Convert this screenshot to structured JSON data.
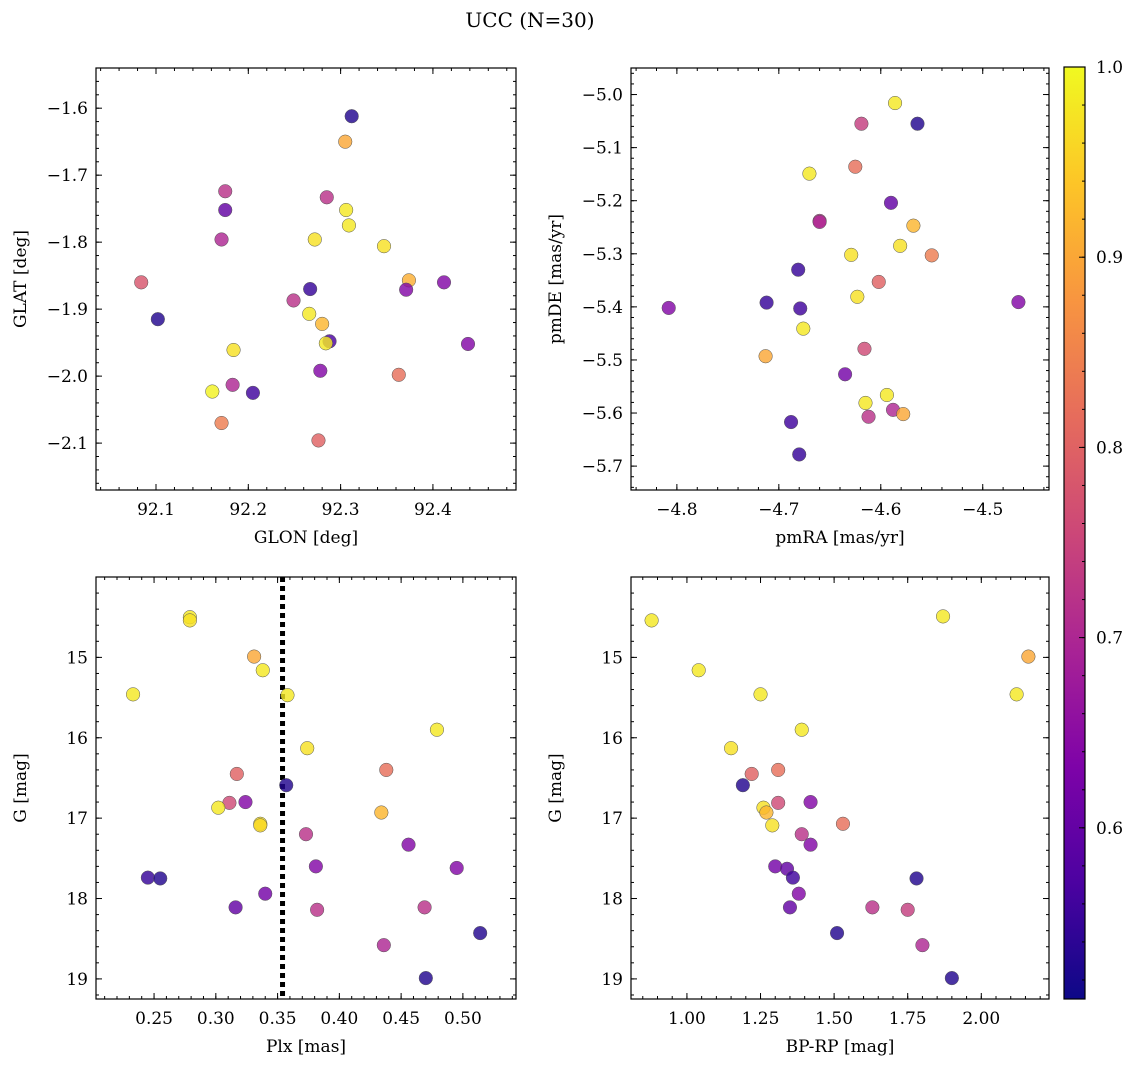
{
  "figure_title": "UCC (N=30)",
  "colorbar": {
    "colormap": "plasma",
    "range": [
      0.51,
      1.0
    ],
    "ticks": [
      0.6,
      0.7,
      0.8,
      0.9,
      1.0
    ],
    "tick_labels": [
      "0.6",
      "0.7",
      "0.8",
      "0.9",
      "1.0"
    ]
  },
  "chart_data": [
    {
      "type": "scatter",
      "xlabel": "GLON [deg]",
      "ylabel": "GLAT [deg]",
      "xlim": [
        92.035,
        92.49
      ],
      "ylim": [
        -2.17,
        -1.54
      ],
      "xticks": [
        92.1,
        92.2,
        92.3,
        92.4
      ],
      "xtick_labels": [
        "92.1",
        "92.2",
        "92.3",
        "92.4"
      ],
      "yticks": [
        -1.6,
        -1.7,
        -1.8,
        -1.9,
        -2.0,
        -2.1
      ],
      "ytick_labels": [
        "−1.6",
        "−1.7",
        "−1.8",
        "−1.9",
        "−2.0",
        "−2.1"
      ],
      "points": [
        {
          "x": 92.312,
          "y": -1.612,
          "c": 0.53
        },
        {
          "x": 92.305,
          "y": -1.65,
          "c": 0.9
        },
        {
          "x": 92.175,
          "y": -1.724,
          "c": 0.72
        },
        {
          "x": 92.285,
          "y": -1.733,
          "c": 0.72
        },
        {
          "x": 92.175,
          "y": -1.752,
          "c": 0.6
        },
        {
          "x": 92.306,
          "y": -1.752,
          "c": 0.98
        },
        {
          "x": 92.309,
          "y": -1.775,
          "c": 0.98
        },
        {
          "x": 92.171,
          "y": -1.796,
          "c": 0.7
        },
        {
          "x": 92.272,
          "y": -1.796,
          "c": 0.97
        },
        {
          "x": 92.347,
          "y": -1.806,
          "c": 0.97
        },
        {
          "x": 92.374,
          "y": -1.857,
          "c": 0.91
        },
        {
          "x": 92.084,
          "y": -1.86,
          "c": 0.78
        },
        {
          "x": 92.412,
          "y": -1.86,
          "c": 0.64
        },
        {
          "x": 92.267,
          "y": -1.87,
          "c": 0.55
        },
        {
          "x": 92.371,
          "y": -1.871,
          "c": 0.64
        },
        {
          "x": 92.249,
          "y": -1.887,
          "c": 0.72
        },
        {
          "x": 92.266,
          "y": -1.907,
          "c": 0.98
        },
        {
          "x": 92.102,
          "y": -1.915,
          "c": 0.53
        },
        {
          "x": 92.28,
          "y": -1.922,
          "c": 0.92
        },
        {
          "x": 92.288,
          "y": -1.948,
          "c": 0.57
        },
        {
          "x": 92.284,
          "y": -1.951,
          "c": 0.98
        },
        {
          "x": 92.438,
          "y": -1.952,
          "c": 0.64
        },
        {
          "x": 92.184,
          "y": -1.961,
          "c": 0.97
        },
        {
          "x": 92.278,
          "y": -1.992,
          "c": 0.64
        },
        {
          "x": 92.363,
          "y": -1.998,
          "c": 0.82
        },
        {
          "x": 92.183,
          "y": -2.013,
          "c": 0.7
        },
        {
          "x": 92.161,
          "y": -2.023,
          "c": 0.99
        },
        {
          "x": 92.205,
          "y": -2.025,
          "c": 0.56
        },
        {
          "x": 92.171,
          "y": -2.07,
          "c": 0.84
        },
        {
          "x": 92.276,
          "y": -2.096,
          "c": 0.8
        }
      ]
    },
    {
      "type": "scatter",
      "xlabel": "pmRA [mas/yr]",
      "ylabel": "pmDE [mas/yr]",
      "xlim": [
        -4.845,
        -4.435
      ],
      "ylim": [
        -5.745,
        -4.95
      ],
      "xticks": [
        -4.8,
        -4.7,
        -4.6,
        -4.5
      ],
      "xtick_labels": [
        "−4.8",
        "−4.7",
        "−4.6",
        "−4.5"
      ],
      "yticks": [
        -5.0,
        -5.1,
        -5.2,
        -5.3,
        -5.4,
        -5.5,
        -5.6,
        -5.7
      ],
      "ytick_labels": [
        "−5.0",
        "−5.1",
        "−5.2",
        "−5.3",
        "−5.4",
        "−5.5",
        "−5.6",
        "−5.7"
      ],
      "points": [
        {
          "x": -4.586,
          "y": -5.016,
          "c": 0.98
        },
        {
          "x": -4.619,
          "y": -5.055,
          "c": 0.74
        },
        {
          "x": -4.564,
          "y": -5.055,
          "c": 0.53
        },
        {
          "x": -4.625,
          "y": -5.136,
          "c": 0.82
        },
        {
          "x": -4.67,
          "y": -5.149,
          "c": 0.98
        },
        {
          "x": -4.59,
          "y": -5.204,
          "c": 0.6
        },
        {
          "x": -4.66,
          "y": -5.238,
          "c": 0.72
        },
        {
          "x": -4.66,
          "y": -5.24,
          "c": 0.7
        },
        {
          "x": -4.568,
          "y": -5.247,
          "c": 0.92
        },
        {
          "x": -4.581,
          "y": -5.285,
          "c": 0.97
        },
        {
          "x": -4.629,
          "y": -5.302,
          "c": 0.97
        },
        {
          "x": -4.55,
          "y": -5.303,
          "c": 0.84
        },
        {
          "x": -4.681,
          "y": -5.33,
          "c": 0.55
        },
        {
          "x": -4.602,
          "y": -5.353,
          "c": 0.8
        },
        {
          "x": -4.623,
          "y": -5.381,
          "c": 0.97
        },
        {
          "x": -4.465,
          "y": -5.391,
          "c": 0.64
        },
        {
          "x": -4.712,
          "y": -5.392,
          "c": 0.55
        },
        {
          "x": -4.808,
          "y": -5.402,
          "c": 0.64
        },
        {
          "x": -4.679,
          "y": -5.403,
          "c": 0.56
        },
        {
          "x": -4.676,
          "y": -5.441,
          "c": 0.98
        },
        {
          "x": -4.616,
          "y": -5.479,
          "c": 0.76
        },
        {
          "x": -4.713,
          "y": -5.493,
          "c": 0.9
        },
        {
          "x": -4.635,
          "y": -5.527,
          "c": 0.62
        },
        {
          "x": -4.594,
          "y": -5.566,
          "c": 0.98
        },
        {
          "x": -4.615,
          "y": -5.581,
          "c": 0.98
        },
        {
          "x": -4.588,
          "y": -5.594,
          "c": 0.7
        },
        {
          "x": -4.578,
          "y": -5.602,
          "c": 0.9
        },
        {
          "x": -4.612,
          "y": -5.607,
          "c": 0.72
        },
        {
          "x": -4.688,
          "y": -5.617,
          "c": 0.56
        },
        {
          "x": -4.68,
          "y": -5.678,
          "c": 0.55
        }
      ]
    },
    {
      "type": "scatter",
      "xlabel": "Plx [mas]",
      "ylabel": "G [mag]",
      "xlim": [
        0.203,
        0.543
      ],
      "ylim": [
        19.25,
        14.0
      ],
      "xticks": [
        0.25,
        0.3,
        0.35,
        0.4,
        0.45,
        0.5
      ],
      "xtick_labels": [
        "0.25",
        "0.30",
        "0.35",
        "0.40",
        "0.45",
        "0.50"
      ],
      "yticks": [
        15,
        16,
        17,
        18,
        19
      ],
      "ytick_labels": [
        "15",
        "16",
        "17",
        "18",
        "19"
      ],
      "vline": {
        "x": 0.354,
        "style": "dotted"
      },
      "points": [
        {
          "x": 0.279,
          "y": 14.5,
          "c": 0.98
        },
        {
          "x": 0.279,
          "y": 14.54,
          "c": 0.97
        },
        {
          "x": 0.331,
          "y": 14.99,
          "c": 0.9
        },
        {
          "x": 0.338,
          "y": 15.16,
          "c": 0.98
        },
        {
          "x": 0.233,
          "y": 15.46,
          "c": 0.98
        },
        {
          "x": 0.358,
          "y": 15.47,
          "c": 0.98
        },
        {
          "x": 0.479,
          "y": 15.9,
          "c": 0.98
        },
        {
          "x": 0.374,
          "y": 16.13,
          "c": 0.97
        },
        {
          "x": 0.438,
          "y": 16.4,
          "c": 0.82
        },
        {
          "x": 0.317,
          "y": 16.45,
          "c": 0.8
        },
        {
          "x": 0.357,
          "y": 16.59,
          "c": 0.53
        },
        {
          "x": 0.324,
          "y": 16.8,
          "c": 0.64
        },
        {
          "x": 0.311,
          "y": 16.81,
          "c": 0.76
        },
        {
          "x": 0.302,
          "y": 16.87,
          "c": 0.98
        },
        {
          "x": 0.434,
          "y": 16.93,
          "c": 0.92
        },
        {
          "x": 0.336,
          "y": 17.07,
          "c": 0.97
        },
        {
          "x": 0.336,
          "y": 17.09,
          "c": 0.96
        },
        {
          "x": 0.373,
          "y": 17.2,
          "c": 0.72
        },
        {
          "x": 0.456,
          "y": 17.33,
          "c": 0.64
        },
        {
          "x": 0.381,
          "y": 17.6,
          "c": 0.64
        },
        {
          "x": 0.495,
          "y": 17.62,
          "c": 0.64
        },
        {
          "x": 0.245,
          "y": 17.74,
          "c": 0.55
        },
        {
          "x": 0.255,
          "y": 17.75,
          "c": 0.53
        },
        {
          "x": 0.34,
          "y": 17.94,
          "c": 0.62
        },
        {
          "x": 0.316,
          "y": 18.11,
          "c": 0.6
        },
        {
          "x": 0.469,
          "y": 18.11,
          "c": 0.72
        },
        {
          "x": 0.382,
          "y": 18.14,
          "c": 0.72
        },
        {
          "x": 0.514,
          "y": 18.43,
          "c": 0.53
        },
        {
          "x": 0.436,
          "y": 18.58,
          "c": 0.7
        },
        {
          "x": 0.47,
          "y": 18.99,
          "c": 0.53
        }
      ]
    },
    {
      "type": "scatter",
      "xlabel": "BP-RP [mag]",
      "ylabel": "G [mag]",
      "xlim": [
        0.81,
        2.23
      ],
      "ylim": [
        19.25,
        14.0
      ],
      "xticks": [
        1.0,
        1.25,
        1.5,
        1.75,
        2.0
      ],
      "xtick_labels": [
        "1.00",
        "1.25",
        "1.50",
        "1.75",
        "2.00"
      ],
      "yticks": [
        15,
        16,
        17,
        18,
        19
      ],
      "ytick_labels": [
        "15",
        "16",
        "17",
        "18",
        "19"
      ],
      "points": [
        {
          "x": 0.88,
          "y": 14.54,
          "c": 0.98
        },
        {
          "x": 1.87,
          "y": 14.49,
          "c": 0.98
        },
        {
          "x": 2.16,
          "y": 14.99,
          "c": 0.9
        },
        {
          "x": 1.04,
          "y": 15.16,
          "c": 0.98
        },
        {
          "x": 1.25,
          "y": 15.46,
          "c": 0.98
        },
        {
          "x": 2.12,
          "y": 15.46,
          "c": 0.98
        },
        {
          "x": 1.39,
          "y": 15.9,
          "c": 0.98
        },
        {
          "x": 1.15,
          "y": 16.13,
          "c": 0.97
        },
        {
          "x": 1.31,
          "y": 16.4,
          "c": 0.82
        },
        {
          "x": 1.22,
          "y": 16.45,
          "c": 0.8
        },
        {
          "x": 1.19,
          "y": 16.59,
          "c": 0.53
        },
        {
          "x": 1.42,
          "y": 16.8,
          "c": 0.64
        },
        {
          "x": 1.31,
          "y": 16.81,
          "c": 0.76
        },
        {
          "x": 1.26,
          "y": 16.87,
          "c": 0.97
        },
        {
          "x": 1.27,
          "y": 16.93,
          "c": 0.92
        },
        {
          "x": 1.53,
          "y": 17.07,
          "c": 0.82
        },
        {
          "x": 1.29,
          "y": 17.09,
          "c": 0.97
        },
        {
          "x": 1.39,
          "y": 17.2,
          "c": 0.72
        },
        {
          "x": 1.42,
          "y": 17.33,
          "c": 0.64
        },
        {
          "x": 1.3,
          "y": 17.6,
          "c": 0.62
        },
        {
          "x": 1.34,
          "y": 17.63,
          "c": 0.6
        },
        {
          "x": 1.36,
          "y": 17.74,
          "c": 0.56
        },
        {
          "x": 1.78,
          "y": 17.75,
          "c": 0.53
        },
        {
          "x": 1.38,
          "y": 17.94,
          "c": 0.64
        },
        {
          "x": 1.35,
          "y": 18.11,
          "c": 0.6
        },
        {
          "x": 1.63,
          "y": 18.11,
          "c": 0.72
        },
        {
          "x": 1.75,
          "y": 18.14,
          "c": 0.74
        },
        {
          "x": 1.51,
          "y": 18.43,
          "c": 0.53
        },
        {
          "x": 1.8,
          "y": 18.58,
          "c": 0.7
        },
        {
          "x": 1.9,
          "y": 18.99,
          "c": 0.53
        }
      ]
    }
  ]
}
